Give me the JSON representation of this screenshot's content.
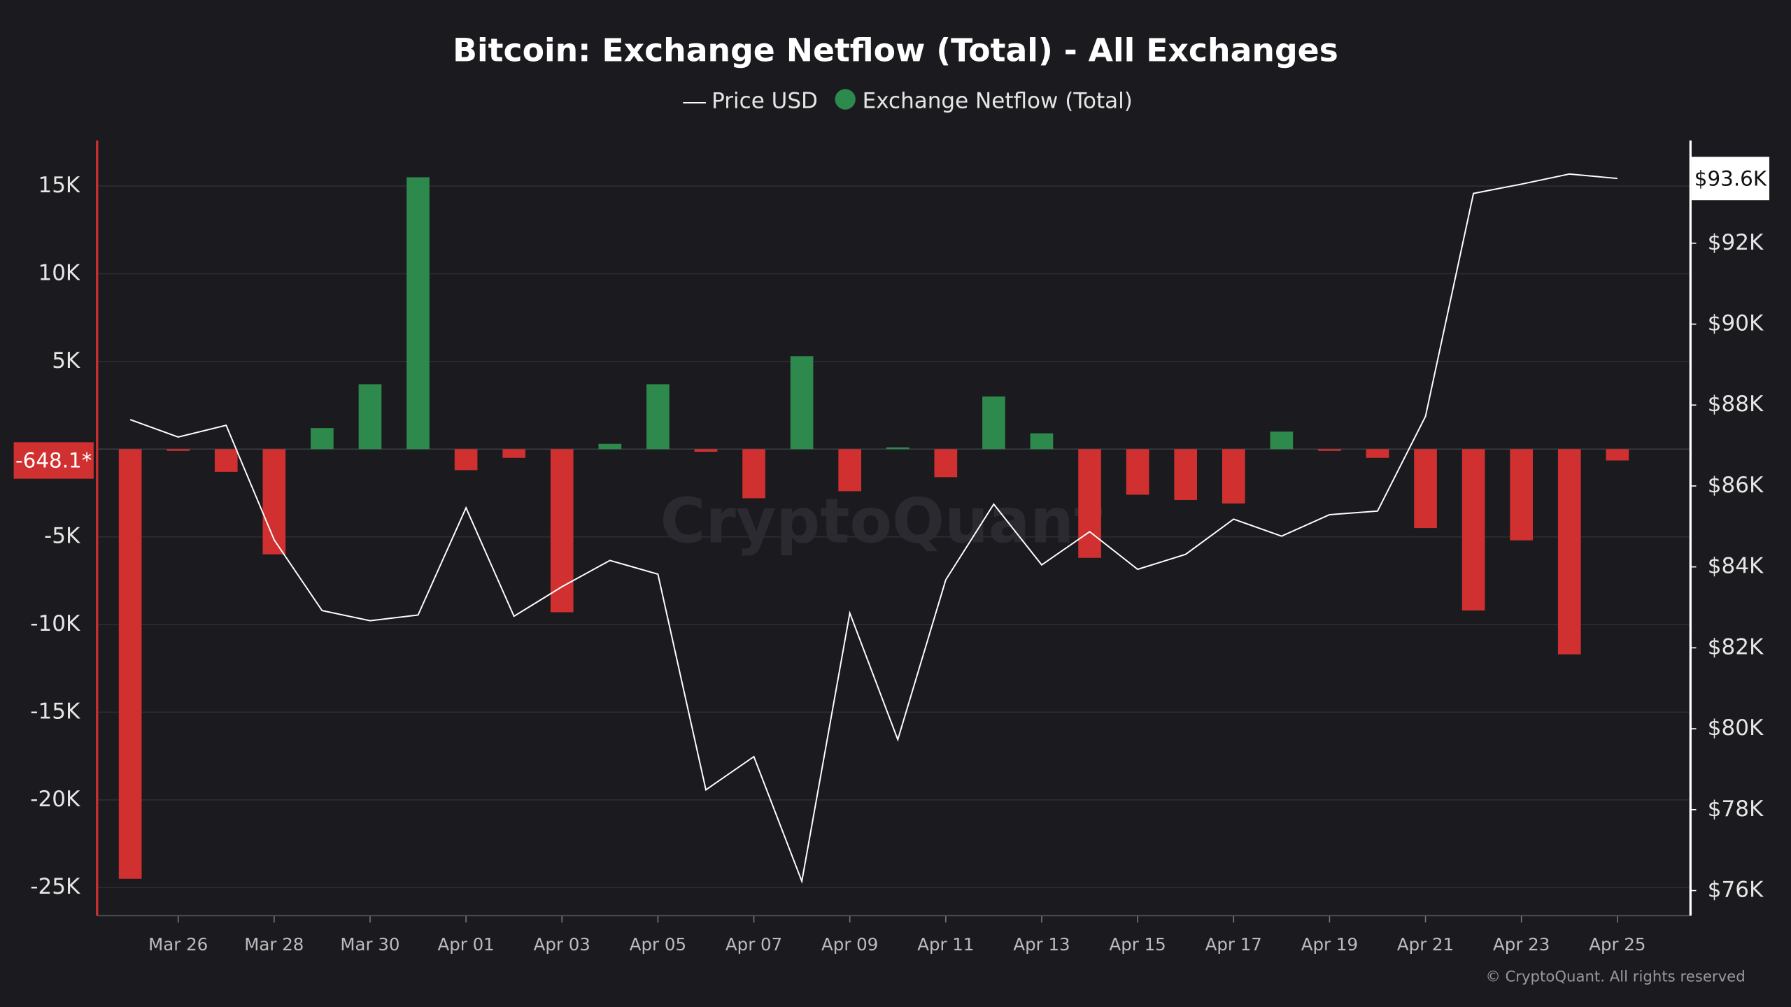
{
  "chart_data": {
    "type": "bar_line",
    "title": "Bitcoin: Exchange Netflow (Total) - All Exchanges",
    "watermark": "CryptoQuant",
    "copyright": "© CryptoQuant. All rights reserved",
    "categories": [
      null,
      "Mar 26",
      null,
      "Mar 28",
      null,
      "Mar 30",
      null,
      "Apr 01",
      null,
      "Apr 03",
      null,
      "Apr 05",
      null,
      "Apr 07",
      null,
      "Apr 09",
      null,
      "Apr 11",
      null,
      "Apr 13",
      null,
      "Apr 15",
      null,
      "Apr 17",
      null,
      "Apr 19",
      null,
      "Apr 21",
      null,
      "Apr 23",
      null,
      "Apr 25"
    ],
    "series": [
      {
        "name": "Exchange Netflow (Total)",
        "type": "bar",
        "color": "#2e8a4c",
        "negative_color": "#d0302f",
        "values": [
          -24500,
          -100,
          -1300,
          -6000,
          1200,
          3700,
          15500,
          -1200,
          -500,
          -9300,
          300,
          3700,
          -150,
          -2800,
          5300,
          -2400,
          100,
          -1600,
          3000,
          900,
          -6200,
          -2600,
          -2900,
          -3100,
          1000,
          -100,
          -500,
          -4500,
          -9200,
          -5200,
          -11700,
          -648.1
        ],
        "last_label": "-648.1*"
      },
      {
        "name": "Price USD",
        "type": "line",
        "axis": "y2",
        "color": "#ffffff",
        "values": [
          87640,
          87210,
          87500,
          84670,
          82920,
          82670,
          82810,
          85460,
          82780,
          83510,
          84160,
          83820,
          78490,
          79310,
          76230,
          82860,
          79730,
          83680,
          85550,
          84050,
          84870,
          83940,
          84310,
          85180,
          84760,
          85290,
          85380,
          87720,
          93230,
          93460,
          93710,
          93600
        ],
        "last_label": "$93.6K"
      }
    ],
    "ylim": [
      -26600,
      17600
    ],
    "yticks": [
      {
        "value": 15000,
        "label": "15K"
      },
      {
        "value": 10000,
        "label": "10K"
      },
      {
        "value": 5000,
        "label": "5K"
      },
      {
        "value": -5000,
        "label": "-5K"
      },
      {
        "value": -10000,
        "label": "-10K"
      },
      {
        "value": -15000,
        "label": "-15K"
      },
      {
        "value": -20000,
        "label": "-20K"
      },
      {
        "value": -25000,
        "label": "-25K"
      }
    ],
    "y2lim": [
      75380,
      94540
    ],
    "y2ticks": [
      {
        "value": 92000,
        "label": "$92K"
      },
      {
        "value": 90000,
        "label": "$90K"
      },
      {
        "value": 88000,
        "label": "$88K"
      },
      {
        "value": 86000,
        "label": "$86K"
      },
      {
        "value": 84000,
        "label": "$84K"
      },
      {
        "value": 82000,
        "label": "$82K"
      },
      {
        "value": 80000,
        "label": "$80K"
      },
      {
        "value": 78000,
        "label": "$78K"
      },
      {
        "value": 76000,
        "label": "$76K"
      }
    ],
    "grid": true
  }
}
